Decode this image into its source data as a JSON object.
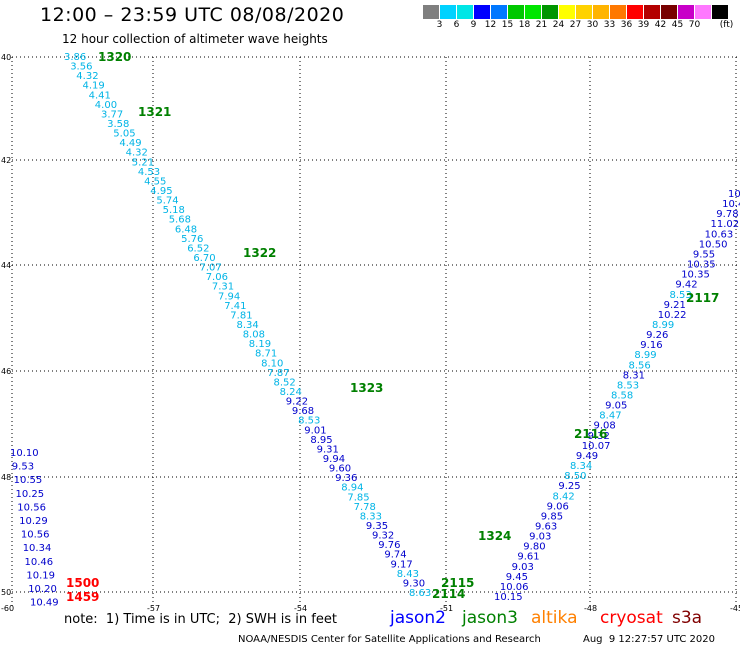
{
  "title": "12:00 – 23:59 UTC 08/08/2020",
  "subtitle": "12 hour collection of altimeter wave heights",
  "scale": {
    "colors": [
      "#7f7f7f",
      "#00d2ff",
      "#00e6e6",
      "#0000ff",
      "#0078ff",
      "#00c800",
      "#00e600",
      "#009600",
      "#ffff00",
      "#ffd200",
      "#ffb400",
      "#ff7800",
      "#ff0000",
      "#b40000",
      "#780000",
      "#c800c8",
      "#ff78ff",
      "#000000"
    ],
    "labels": [
      "3",
      "6",
      "9",
      "12",
      "15",
      "18",
      "21",
      "24",
      "27",
      "30",
      "33",
      "36",
      "39",
      "42",
      "45",
      "70"
    ],
    "unit": "(ft)"
  },
  "axes": {
    "lat_labels": [
      "40",
      "42",
      "44",
      "46",
      "48",
      "50"
    ],
    "lon_labels": [
      "-60",
      "-57",
      "-54",
      "-51",
      "-48",
      "-45"
    ]
  },
  "colors": {
    "jason2": "#0000cc",
    "jason3": "#008000",
    "altika": "#ff8000",
    "cryosat": "#ff0000",
    "s3a": "#800000",
    "cyan": "#00b4e6",
    "grid": "#000000"
  },
  "tracks": {
    "descending": {
      "labels": [
        "3.86",
        "3.56",
        "4.32",
        "4.19",
        "4.41",
        "4.00",
        "3.77",
        "3.58",
        "5.05",
        "4.49",
        "4.32",
        "5.21",
        "4.53",
        "4.55",
        "4.95",
        "5.74",
        "5.18",
        "5.68",
        "6.48",
        "5.76",
        "6.52",
        "6.70",
        "7.07",
        "7.06",
        "7.31",
        "7.94",
        "7.41",
        "7.81",
        "8.34",
        "8.08",
        "8.19",
        "8.71",
        "8.10",
        "7.87",
        "8.52",
        "8.24",
        "9.22",
        "9.68",
        "8.53",
        "9.01",
        "8.95",
        "9.31",
        "9.94",
        "9.60",
        "9.36",
        "8.94",
        "7.85",
        "7.78",
        "8.33",
        "9.35",
        "9.32",
        "9.76",
        "9.74",
        "9.17",
        "8.43",
        "9.30",
        "8.63"
      ],
      "colors": [
        "c",
        "c",
        "c",
        "c",
        "c",
        "c",
        "c",
        "c",
        "c",
        "c",
        "c",
        "c",
        "c",
        "c",
        "c",
        "c",
        "c",
        "c",
        "c",
        "c",
        "c",
        "c",
        "c",
        "c",
        "c",
        "c",
        "c",
        "c",
        "c",
        "c",
        "c",
        "c",
        "c",
        "c",
        "c",
        "c",
        "b",
        "b",
        "c",
        "b",
        "b",
        "b",
        "b",
        "b",
        "b",
        "c",
        "c",
        "c",
        "c",
        "b",
        "b",
        "b",
        "b",
        "b",
        "c",
        "b",
        "c"
      ]
    },
    "ascending": {
      "labels": [
        "10.15",
        "10.06",
        "9.45",
        "9.03",
        "9.61",
        "9.80",
        "9.03",
        "9.63",
        "9.85",
        "9.06",
        "8.42",
        "9.25",
        "8.50",
        "8.34",
        "9.49",
        "10.07",
        "9.32",
        "9.08",
        "8.47",
        "9.05",
        "8.58",
        "8.53",
        "8.31",
        "8.56",
        "8.99",
        "9.16",
        "9.26",
        "8.99",
        "10.22",
        "9.21",
        "8.53",
        "9.42",
        "10.35",
        "10.35",
        "9.55",
        "10.50",
        "10.63",
        "11.02",
        "9.78",
        "10.4",
        "10"
      ],
      "colors": [
        "b",
        "b",
        "b",
        "b",
        "b",
        "b",
        "b",
        "b",
        "b",
        "b",
        "c",
        "b",
        "c",
        "c",
        "b",
        "b",
        "b",
        "b",
        "c",
        "b",
        "c",
        "c",
        "b",
        "c",
        "c",
        "b",
        "b",
        "c",
        "b",
        "b",
        "c",
        "b",
        "b",
        "b",
        "b",
        "b",
        "b",
        "b",
        "b",
        "b",
        "b"
      ]
    },
    "western": {
      "labels": [
        "10.10",
        "9.53",
        "10.55",
        "10.25",
        "10.56",
        "10.29",
        "10.56",
        "10.34",
        "10.46",
        "10.19",
        "10.20",
        "10.49"
      ]
    }
  },
  "time_labels": [
    {
      "text": "1320",
      "color": "#008000"
    },
    {
      "text": "1321",
      "color": "#008000"
    },
    {
      "text": "1322",
      "color": "#008000"
    },
    {
      "text": "1323",
      "color": "#008000"
    },
    {
      "text": "1324",
      "color": "#008000"
    },
    {
      "text": "2115",
      "color": "#008000"
    },
    {
      "text": "2114",
      "color": "#008000"
    },
    {
      "text": "2116",
      "color": "#008000"
    },
    {
      "text": "2117",
      "color": "#008000"
    },
    {
      "text": "1500",
      "color": "#ff0000"
    },
    {
      "text": "1459",
      "color": "#ff0000"
    }
  ],
  "note": "note:  1) Time is in UTC;  2) SWH is in feet",
  "satellites": [
    {
      "name": "jason2",
      "color": "#0000ff"
    },
    {
      "name": "jason3",
      "color": "#008000"
    },
    {
      "name": "altika",
      "color": "#ff8000"
    },
    {
      "name": "cryosat",
      "color": "#ff0000"
    },
    {
      "name": "s3a",
      "color": "#800000"
    }
  ],
  "footer": "NOAA/NESDIS Center for Satellite Applications and Research",
  "timestamp": "Aug  9 12:27:57 UTC 2020"
}
